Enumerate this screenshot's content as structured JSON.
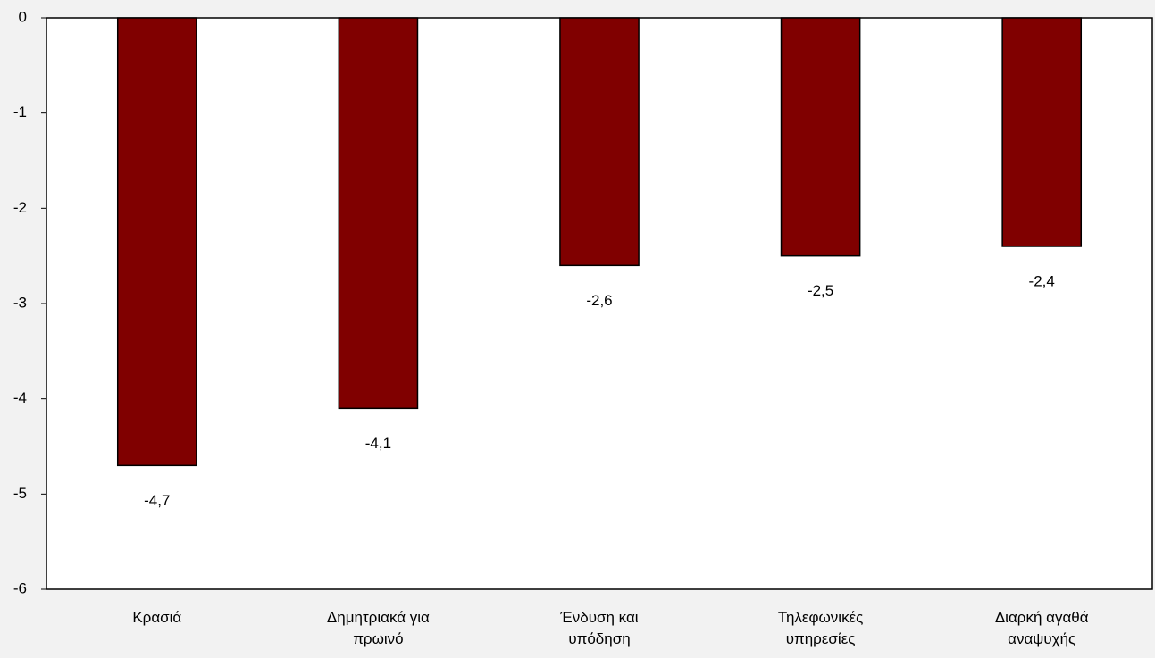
{
  "chart_data": {
    "type": "bar",
    "categories": [
      "Κρασιά",
      "Δημητριακά για πρωινό",
      "Ένδυση και υπόδηση",
      "Τηλεφωνικές υπηρεσίες",
      "Διαρκή αγαθά αναψυχής"
    ],
    "values": [
      -4.7,
      -4.1,
      -2.6,
      -2.5,
      -2.4
    ],
    "value_labels": [
      "-4,7",
      "-4,1",
      "-2,6",
      "-2,5",
      "-2,4"
    ],
    "color": "#800000",
    "ylim": [
      -6,
      0
    ],
    "yticks": [
      0,
      -1,
      -2,
      -3,
      -4,
      -5,
      -6
    ],
    "grid": false
  }
}
